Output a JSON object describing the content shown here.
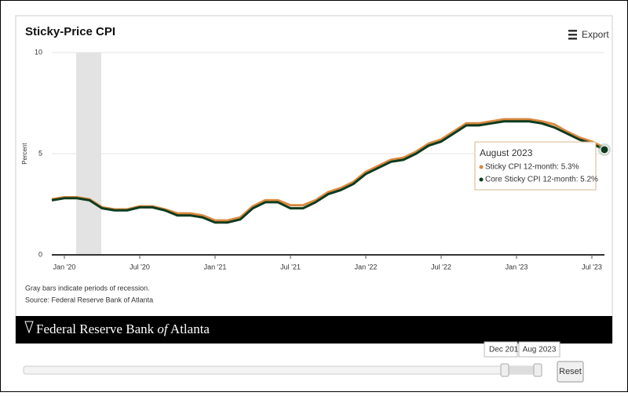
{
  "chart_data": {
    "type": "line",
    "title": "Sticky-Price CPI",
    "export_label": "Export",
    "y_label": "Percent",
    "categories": [
      null,
      "Jan '20",
      null,
      null,
      null,
      null,
      null,
      "Jul '20",
      null,
      null,
      null,
      null,
      null,
      "Jan '21",
      null,
      null,
      null,
      null,
      null,
      "Jul '21",
      null,
      null,
      null,
      null,
      null,
      "Jan '22",
      null,
      null,
      null,
      null,
      null,
      "Jul '22",
      null,
      null,
      null,
      null,
      null,
      "Jan '23",
      null,
      null,
      null,
      null,
      null,
      "Jul '23",
      null
    ],
    "series": [
      {
        "color": "#d9893f",
        "values": [
          2.75,
          2.85,
          2.85,
          2.75,
          2.35,
          2.25,
          2.25,
          2.4,
          2.4,
          2.25,
          2.05,
          2.05,
          1.95,
          1.7,
          1.7,
          1.85,
          2.4,
          2.7,
          2.7,
          2.45,
          2.45,
          2.7,
          3.1,
          3.3,
          3.6,
          4.1,
          4.4,
          4.7,
          4.8,
          5.1,
          5.5,
          5.7,
          6.1,
          6.5,
          6.5,
          6.6,
          6.7,
          6.7,
          6.7,
          6.6,
          6.45,
          6.1,
          5.8,
          5.6,
          5.3
        ]
      },
      {
        "color": "#0d3b1f",
        "values": [
          2.7,
          2.8,
          2.8,
          2.7,
          2.3,
          2.2,
          2.2,
          2.35,
          2.35,
          2.2,
          1.95,
          1.95,
          1.85,
          1.6,
          1.6,
          1.75,
          2.3,
          2.6,
          2.6,
          2.3,
          2.3,
          2.6,
          3.0,
          3.2,
          3.5,
          4.0,
          4.3,
          4.6,
          4.7,
          5.0,
          5.4,
          5.6,
          6.0,
          6.4,
          6.4,
          6.5,
          6.6,
          6.6,
          6.6,
          6.5,
          6.3,
          6.0,
          5.7,
          5.5,
          5.2
        ]
      }
    ],
    "ylim": [
      0,
      10
    ],
    "yticks": [
      0,
      5,
      10
    ],
    "grid": true,
    "tooltip": {
      "title": "August 2023",
      "lines": [
        "Sticky CPI 12-month: 5.3%",
        "Core Sticky CPI 12-month: 5.2%"
      ]
    },
    "notes": [
      "Gray bars indicate periods of recession.",
      "Source: Federal Reserve Bank of Atlanta"
    ],
    "banner": {
      "before": "Federal Reserve Bank ",
      "italic": "of",
      "after": " Atlanta"
    },
    "slider": {
      "start_label": "Dec 201",
      "end_label": "Aug 2023",
      "reset": "Reset"
    }
  }
}
